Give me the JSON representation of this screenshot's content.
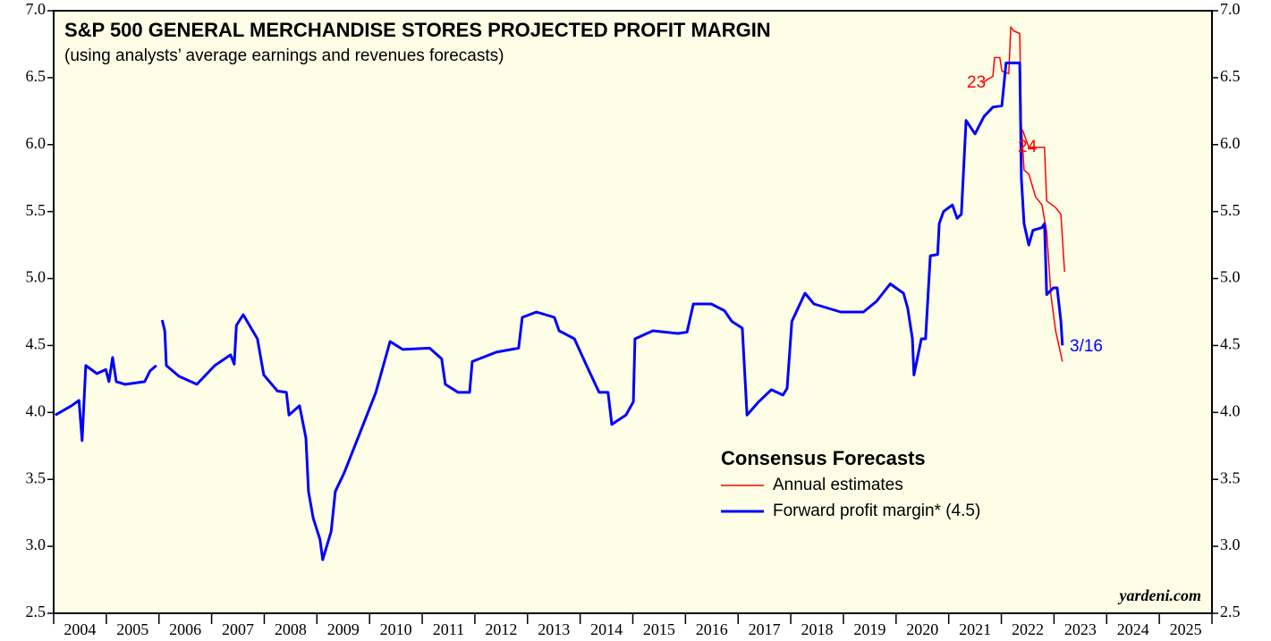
{
  "chart_data": {
    "type": "line",
    "title": "S&P 500 GENERAL MERCHANDISE STORES PROJECTED PROFIT MARGIN",
    "subtitle": "(using analysts’ average earnings and revenues forecasts)",
    "legend_title": "Consensus Forecasts",
    "legend": "lower right",
    "source": "yardeni.com",
    "background": "#fefee6",
    "xlim": [
      2004,
      2026
    ],
    "xticks": [
      2004,
      2005,
      2006,
      2007,
      2008,
      2009,
      2010,
      2011,
      2012,
      2013,
      2014,
      2015,
      2016,
      2017,
      2018,
      2019,
      2020,
      2021,
      2022,
      2023,
      2024,
      2025
    ],
    "ylim": [
      2.5,
      7
    ],
    "yticks": [
      {
        "value": 2.5,
        "label": "2.5"
      },
      {
        "value": 3,
        "label": "3.0"
      },
      {
        "value": 3.5,
        "label": "3.5"
      },
      {
        "value": 4,
        "label": "4.0"
      },
      {
        "value": 4.5,
        "label": "4.5"
      },
      {
        "value": 5,
        "label": "5.0"
      },
      {
        "value": 5.5,
        "label": "5.5"
      },
      {
        "value": 6,
        "label": "6.0"
      },
      {
        "value": 6.5,
        "label": "6.5"
      },
      {
        "value": 7,
        "label": "7.0"
      }
    ],
    "annotations": [
      {
        "text": "23",
        "color": "#ff0000"
      },
      {
        "text": "24",
        "color": "#ff0000"
      },
      {
        "text": "3/16",
        "color": "#0000ff"
      }
    ],
    "series": [
      {
        "name": "Annual estimates",
        "color": "#ff0000",
        "width": 1.5,
        "x": [
          2021.64,
          2021.75,
          2021.84,
          2021.87,
          2021.97,
          2022.01,
          2022.14,
          2022.18,
          2022.23,
          2022.35,
          2022.38,
          2022.43,
          2022.52,
          2022.65,
          2022.77,
          2022.86,
          2022.94,
          2023.03,
          2023.16,
          null,
          2022.4,
          2022.52,
          2022.82,
          2022.86,
          2023.03,
          2023.13,
          2023.2
        ],
        "values": [
          6.46,
          6.49,
          6.51,
          6.65,
          6.65,
          6.55,
          6.53,
          6.88,
          6.85,
          6.83,
          6.15,
          5.81,
          5.78,
          5.61,
          5.55,
          5.35,
          4.88,
          4.61,
          4.38,
          null,
          6.11,
          5.98,
          5.98,
          5.58,
          5.53,
          5.48,
          5.05
        ]
      },
      {
        "name": "Forward profit margin* (4.5)",
        "color": "#0000ff",
        "width": 3,
        "x": [
          2004.03,
          2004.34,
          2004.48,
          2004.54,
          2004.61,
          2004.82,
          2004.99,
          2005.05,
          2005.12,
          2005.19,
          2005.36,
          2005.73,
          2005.83,
          2005.95,
          null,
          2006.06,
          2006.11,
          2006.14,
          2006.38,
          2006.72,
          2007.06,
          2007.36,
          2007.43,
          2007.47,
          2007.6,
          2007.87,
          2007.99,
          2008.25,
          2008.42,
          2008.47,
          2008.67,
          2008.79,
          2008.84,
          2008.93,
          2009.06,
          2009.11,
          2009.27,
          2009.35,
          2009.52,
          2009.78,
          2010.12,
          2010.39,
          2010.63,
          2011.14,
          2011.37,
          2011.44,
          2011.68,
          2011.9,
          2011.95,
          2012.41,
          2012.83,
          2012.9,
          2013.17,
          2013.51,
          2013.6,
          2013.89,
          2014.11,
          2014.36,
          2014.53,
          2014.6,
          2014.87,
          2015.01,
          2015.04,
          2015.38,
          2015.86,
          2016.03,
          2016.15,
          2016.49,
          2016.74,
          2016.88,
          2017.08,
          2017.17,
          2017.39,
          2017.63,
          2017.85,
          2017.93,
          2018.02,
          2018.27,
          2018.44,
          2018.95,
          2019.38,
          2019.63,
          2019.89,
          2020.14,
          2020.22,
          2020.31,
          2020.34,
          2020.48,
          2020.56,
          2020.65,
          2020.79,
          2020.82,
          2020.9,
          2021.07,
          2021.16,
          2021.24,
          2021.33,
          2021.5,
          2021.67,
          2021.84,
          2022.01,
          2022.09,
          2022.35,
          2022.38,
          2022.43,
          2022.52,
          2022.6,
          2022.77,
          2022.82,
          2022.86,
          2022.99,
          2023.06,
          2023.13,
          2023.16
        ],
        "values": [
          3.98,
          4.05,
          4.09,
          3.79,
          4.35,
          4.29,
          4.32,
          4.23,
          4.41,
          4.23,
          4.21,
          4.23,
          4.31,
          4.35,
          null,
          4.69,
          4.61,
          4.35,
          4.27,
          4.21,
          4.35,
          4.43,
          4.36,
          4.65,
          4.73,
          4.55,
          4.28,
          4.16,
          4.15,
          3.98,
          4.05,
          3.81,
          3.41,
          3.21,
          3.05,
          2.9,
          3.11,
          3.41,
          3.55,
          3.81,
          4.15,
          4.53,
          4.47,
          4.48,
          4.4,
          4.21,
          4.15,
          4.15,
          4.38,
          4.45,
          4.48,
          4.71,
          4.75,
          4.71,
          4.61,
          4.55,
          4.36,
          4.15,
          4.15,
          3.91,
          3.98,
          4.08,
          4.55,
          4.61,
          4.59,
          4.6,
          4.81,
          4.81,
          4.76,
          4.68,
          4.63,
          3.98,
          4.08,
          4.17,
          4.13,
          4.18,
          4.68,
          4.89,
          4.81,
          4.75,
          4.75,
          4.83,
          4.96,
          4.89,
          4.78,
          4.55,
          4.28,
          4.55,
          4.55,
          5.17,
          5.18,
          5.41,
          5.5,
          5.55,
          5.45,
          5.48,
          6.18,
          6.08,
          6.21,
          6.28,
          6.29,
          6.61,
          6.61,
          5.75,
          5.41,
          5.25,
          5.36,
          5.38,
          5.41,
          4.88,
          4.93,
          4.93,
          4.68,
          4.5
        ]
      }
    ]
  }
}
